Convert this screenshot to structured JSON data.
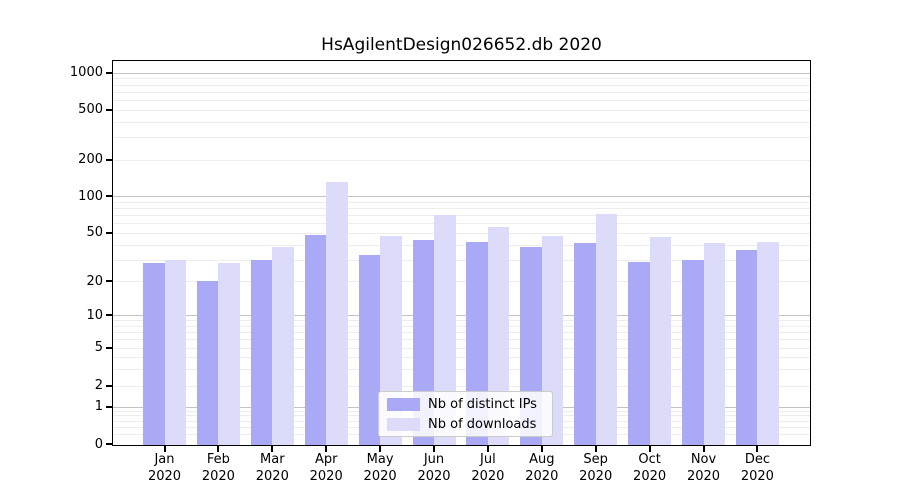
{
  "chart_data": {
    "type": "bar",
    "title": "HsAgilentDesign026652.db 2020",
    "year": "2020",
    "months": [
      "Jan",
      "Feb",
      "Mar",
      "Apr",
      "May",
      "Jun",
      "Jul",
      "Aug",
      "Sep",
      "Oct",
      "Nov",
      "Dec"
    ],
    "series": [
      {
        "name": "Nb of distinct IPs",
        "color": "#a9a9f5",
        "values": [
          28,
          20,
          30,
          48,
          33,
          44,
          42,
          38,
          41,
          29,
          30,
          36
        ]
      },
      {
        "name": "Nb of downloads",
        "color": "#dcdcfa",
        "values": [
          30,
          28,
          38,
          130,
          47,
          70,
          56,
          47,
          71,
          46,
          41,
          42
        ]
      }
    ],
    "y_ticks": [
      "0",
      "1",
      "2",
      "5",
      "10",
      "20",
      "50",
      "100",
      "200",
      "500",
      "1000"
    ],
    "yscale": "log",
    "ylim": [
      0,
      1300
    ],
    "grid": true,
    "legend_position": "inside lower-center"
  },
  "colors": {
    "grid_major": "#c3c3c3",
    "grid_minor": "#ededed",
    "axis": "#000000",
    "legend_border": "#cccccc"
  }
}
